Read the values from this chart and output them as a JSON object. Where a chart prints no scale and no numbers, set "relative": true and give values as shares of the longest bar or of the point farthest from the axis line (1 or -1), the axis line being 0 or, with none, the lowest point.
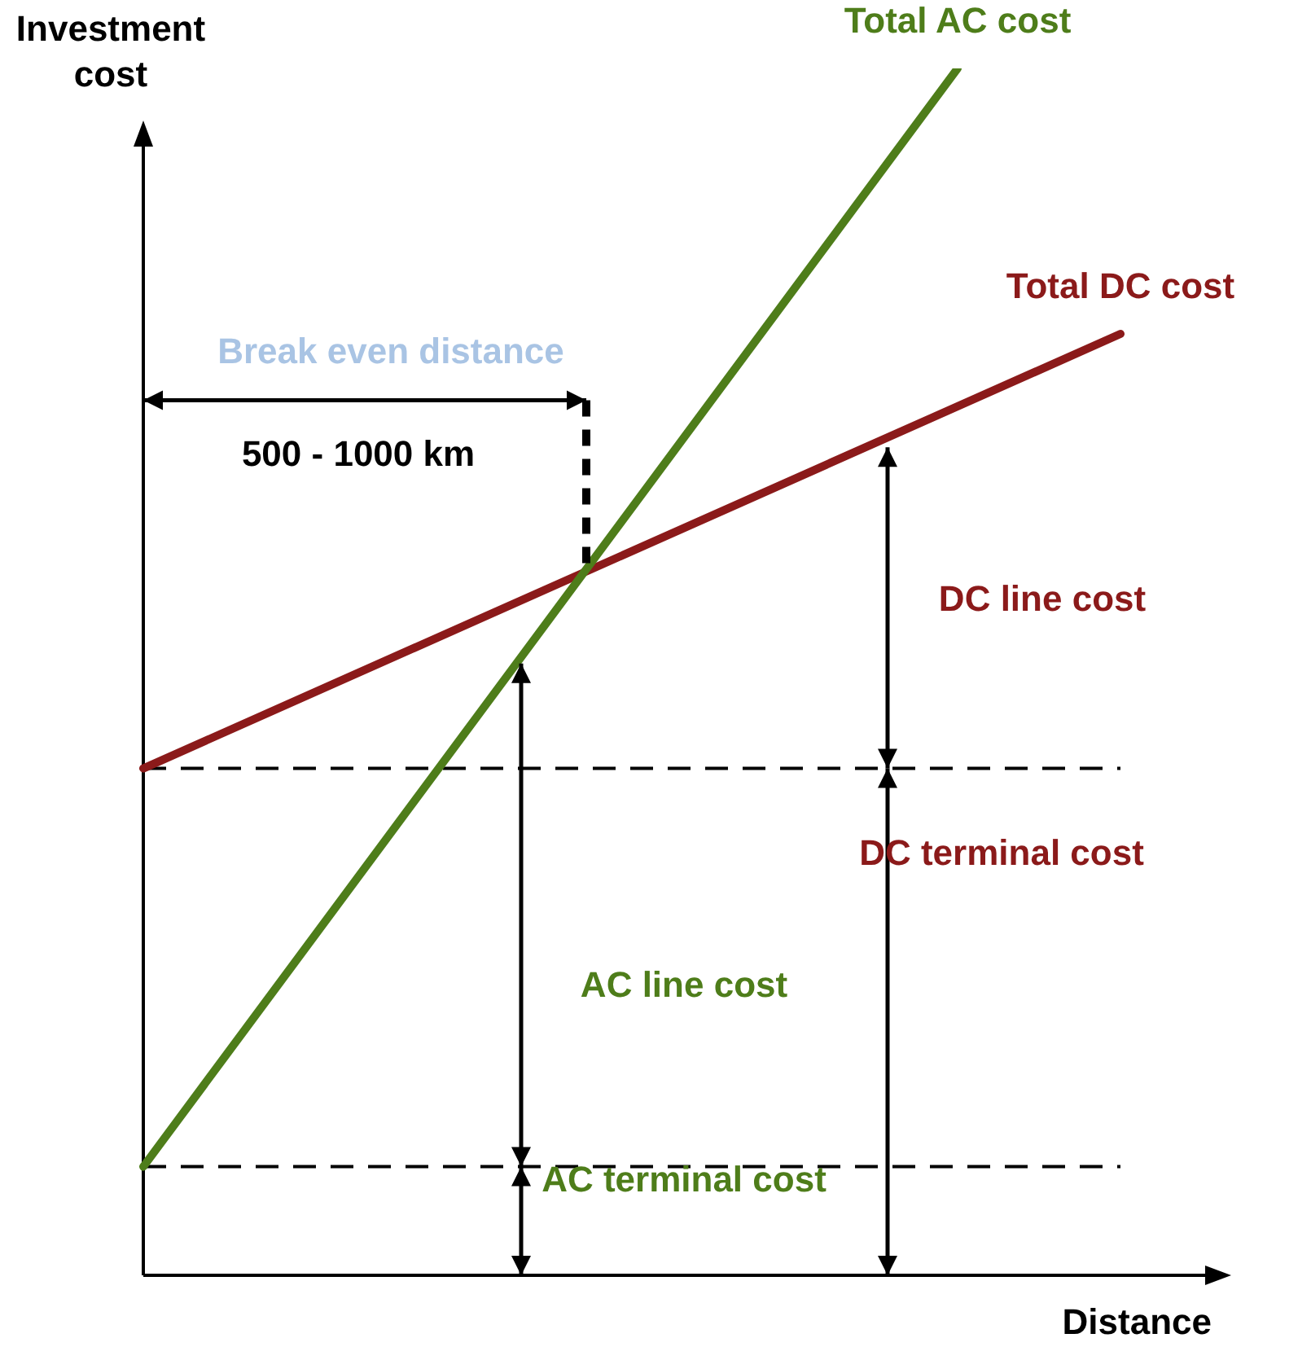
{
  "chart_data": {
    "type": "line",
    "relative": true,
    "xlabel": "Distance",
    "ylabel": "Investment cost",
    "categories": [
      null,
      null,
      null,
      null,
      null,
      null,
      null
    ],
    "series": [
      {
        "name": "Total AC cost",
        "color": "#4e7d1a",
        "values": [
          0.09,
          null,
          null,
          null,
          null,
          1,
          null
        ]
      },
      {
        "name": "Total DC cost",
        "color": "#8b1a1a",
        "values": [
          0.42,
          null,
          null,
          null,
          null,
          null,
          0.78
        ]
      }
    ],
    "ref_lines": [
      {
        "axis": "y",
        "value": 0.42,
        "color": "#000000",
        "line_style": "dashed"
      },
      {
        "axis": "y",
        "value": 0.09,
        "color": "#000000",
        "line_style": "dashed"
      }
    ],
    "annotations": [
      "Break even distance",
      "500 - 1000 km",
      "DC line cost",
      "DC terminal cost",
      "AC line cost",
      "AC terminal cost"
    ],
    "grid": false,
    "legend": false,
    "marker": "none",
    "line_style": "solid"
  }
}
